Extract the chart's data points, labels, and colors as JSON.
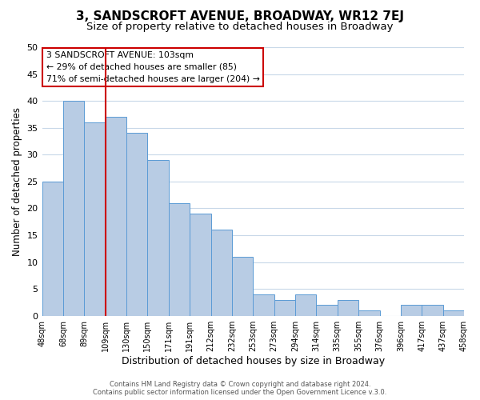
{
  "title": "3, SANDSCROFT AVENUE, BROADWAY, WR12 7EJ",
  "subtitle": "Size of property relative to detached houses in Broadway",
  "xlabel": "Distribution of detached houses by size in Broadway",
  "ylabel": "Number of detached properties",
  "bar_heights": [
    25,
    40,
    36,
    37,
    34,
    29,
    21,
    19,
    16,
    11,
    4,
    3,
    4,
    2,
    3,
    1,
    0,
    2,
    2,
    1
  ],
  "x_labels": [
    "48sqm",
    "68sqm",
    "89sqm",
    "109sqm",
    "130sqm",
    "150sqm",
    "171sqm",
    "191sqm",
    "212sqm",
    "232sqm",
    "253sqm",
    "273sqm",
    "294sqm",
    "314sqm",
    "335sqm",
    "355sqm",
    "376sqm",
    "396sqm",
    "417sqm",
    "437sqm",
    "458sqm"
  ],
  "bar_color": "#b8cce4",
  "bar_edgecolor": "#5b9bd5",
  "grid_color": "#c8d8e8",
  "redline_index": 3,
  "annotation_line1": "3 SANDSCROFT AVENUE: 103sqm",
  "annotation_line2": "← 29% of detached houses are smaller (85)",
  "annotation_line3": "71% of semi-detached houses are larger (204) →",
  "annotation_box_edgecolor": "#cc0000",
  "annotation_box_facecolor": "#ffffff",
  "redline_color": "#cc0000",
  "ylim": [
    0,
    50
  ],
  "yticks": [
    0,
    5,
    10,
    15,
    20,
    25,
    30,
    35,
    40,
    45,
    50
  ],
  "footer_line1": "Contains HM Land Registry data © Crown copyright and database right 2024.",
  "footer_line2": "Contains public sector information licensed under the Open Government Licence v.3.0.",
  "background_color": "#ffffff",
  "title_fontsize": 11,
  "subtitle_fontsize": 9.5,
  "ylabel_fontsize": 8.5,
  "xlabel_fontsize": 9
}
